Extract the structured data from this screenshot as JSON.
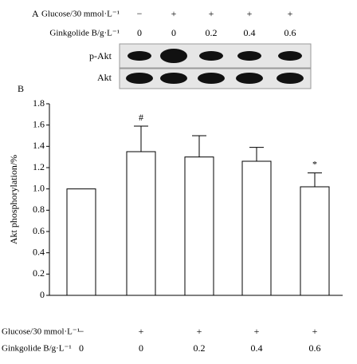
{
  "blot": {
    "panel_label": "A",
    "row_labels": [
      "Glucose/30 mmol·L⁻¹",
      "Ginkgolide B/g·L⁻¹"
    ],
    "glucose": [
      "−",
      "+",
      "+",
      "+",
      "+"
    ],
    "ginkgolide": [
      "0",
      "0",
      "0.2",
      "0.4",
      "0.6"
    ],
    "bands": [
      "p-Akt",
      "Akt"
    ]
  },
  "chart_data": {
    "type": "bar",
    "panel_label": "B",
    "ylabel": "Akt phosphorylation/%",
    "categories": [
      "0",
      "0",
      "0.2",
      "0.4",
      "0.6"
    ],
    "category_rows": [
      {
        "label": "Glucose/30 mmol·L⁻¹",
        "labels": [
          "−",
          "+",
          "+",
          "+",
          "+"
        ]
      },
      {
        "label": "Ginkgolide B/g·L⁻¹"
      }
    ],
    "values": [
      1.0,
      1.35,
      1.3,
      1.26,
      1.02
    ],
    "errors": [
      0,
      0.24,
      0.2,
      0.13,
      0.13
    ],
    "annotations": [
      null,
      "#",
      null,
      null,
      "*"
    ],
    "color": "#ffffff",
    "ylim": [
      0,
      1.8
    ],
    "yticks": [
      0,
      0.2,
      0.4,
      0.6,
      0.8,
      {
        "value": 1,
        "label": "1.0"
      },
      1.2,
      1.4,
      1.6,
      1.8
    ]
  }
}
